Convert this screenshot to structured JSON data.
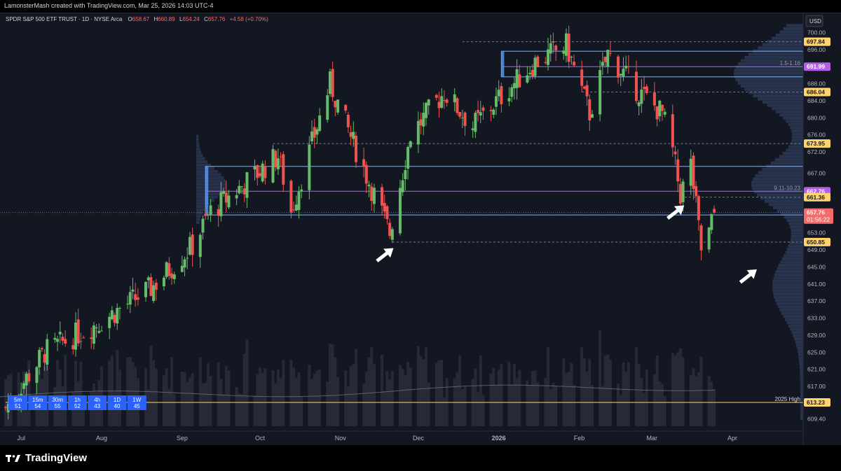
{
  "header": {
    "credit": "LamonsterMash created with TradingView.com, Mar 25, 2026 14:03 UTC-4"
  },
  "footer": {
    "brand": "TradingView"
  },
  "colors": {
    "background": "#131722",
    "up": "#66bb6a",
    "down": "#ef5350",
    "zone_border": "#5b9cf6",
    "zone_fill": "#1e3a8a",
    "vp_fill": "#3b4b73",
    "gold": "#ffd36e",
    "purple": "#b460e6",
    "red_badge": "#f46b6b",
    "axis_text": "#b2b5be"
  },
  "icons": [
    "arrow-icon",
    "tradingview-logo-icon"
  ],
  "chart_data": {
    "type": "candlestick",
    "legend": {
      "symbol": "SPDR S&P 500 ETF TRUST · 1D · NYSE Arca",
      "open_label": "O",
      "open": "658.67",
      "high_label": "H",
      "high": "660.89",
      "low_label": "L",
      "low": "654.24",
      "close_label": "C",
      "close": "657.76",
      "change": "+4.58 (+0.70%)"
    },
    "currency": "USD",
    "y_range": [
      606.5,
      704.5
    ],
    "y_ticks": [
      700.0,
      696.0,
      692.0,
      688.0,
      684.0,
      680.0,
      676.0,
      672.0,
      667.0,
      663.0,
      658.0,
      653.0,
      649.0,
      645.0,
      641.0,
      637.0,
      633.0,
      629.0,
      625.0,
      621.0,
      617.0,
      613.0,
      609.4
    ],
    "x_labels": [
      {
        "label": "Jul",
        "date": "2025-07-01"
      },
      {
        "label": "Aug",
        "date": "2025-08-01"
      },
      {
        "label": "Sep",
        "date": "2025-09-01"
      },
      {
        "label": "Oct",
        "date": "2025-10-01"
      },
      {
        "label": "Nov",
        "date": "2025-11-01"
      },
      {
        "label": "Dec",
        "date": "2025-12-01"
      },
      {
        "label": "2026",
        "date": "2026-01-01"
      },
      {
        "label": "Feb",
        "date": "2026-02-01"
      },
      {
        "label": "Mar",
        "date": "2026-03-01"
      },
      {
        "label": "Apr",
        "date": "2026-04-01"
      }
    ],
    "start_date": "2025-06-25",
    "end_date": "2026-03-25",
    "anchors": [
      {
        "date": "2025-06-25",
        "close": 612
      },
      {
        "date": "2025-07-10",
        "close": 625
      },
      {
        "date": "2025-07-31",
        "close": 632
      },
      {
        "date": "2025-08-20",
        "close": 640
      },
      {
        "date": "2025-09-05",
        "close": 650
      },
      {
        "date": "2025-09-12",
        "close": 658
      },
      {
        "date": "2025-09-22",
        "close": 663
      },
      {
        "date": "2025-10-08",
        "close": 671
      },
      {
        "date": "2025-10-13",
        "close": 658
      },
      {
        "date": "2025-10-28",
        "close": 688
      },
      {
        "date": "2025-11-06",
        "close": 674
      },
      {
        "date": "2025-11-20",
        "close": 653
      },
      {
        "date": "2025-11-28",
        "close": 676
      },
      {
        "date": "2025-12-11",
        "close": 686
      },
      {
        "date": "2025-12-22",
        "close": 678
      },
      {
        "date": "2026-01-05",
        "close": 687
      },
      {
        "date": "2026-01-15",
        "close": 693
      },
      {
        "date": "2026-01-27",
        "close": 697
      },
      {
        "date": "2026-02-05",
        "close": 681
      },
      {
        "date": "2026-02-12",
        "close": 695
      },
      {
        "date": "2026-02-24",
        "close": 686
      },
      {
        "date": "2026-03-05",
        "close": 681
      },
      {
        "date": "2026-03-09",
        "close": 672
      },
      {
        "date": "2026-03-12",
        "close": 662
      },
      {
        "date": "2026-03-16",
        "close": 669
      },
      {
        "date": "2026-03-20",
        "close": 649
      },
      {
        "date": "2026-03-23",
        "close": 653
      },
      {
        "date": "2026-03-25",
        "close": 657.76
      }
    ],
    "zones": [
      {
        "name": "upper-zone",
        "from": "2026-01-02",
        "to": "2026-04-30",
        "top": 695.6,
        "bottom": 689.6
      },
      {
        "name": "lower-zone",
        "from": "2025-09-10",
        "to": "2026-04-30",
        "top": 668.6,
        "bottom": 657.2
      }
    ],
    "levels": [
      {
        "value": 697.84,
        "label": "697.84",
        "style": "dashed",
        "badge": "gold",
        "from": "2025-12-18"
      },
      {
        "value": 691.99,
        "label": "691.99",
        "style": "solid-purple",
        "badge": "purple",
        "from": "2026-01-02",
        "annotation": "1.5-1.16"
      },
      {
        "value": 686.04,
        "label": "686.04",
        "style": "dashed",
        "badge": "gold",
        "from": "2026-02-02"
      },
      {
        "value": 673.95,
        "label": "673.95",
        "style": "dashed",
        "badge": "gold",
        "from": "2025-10-06"
      },
      {
        "value": 662.76,
        "label": "662.76",
        "style": "solid-purple",
        "badge": "purple",
        "from": "2025-09-10",
        "annotation": "9.11-10.23"
      },
      {
        "value": 661.36,
        "label": "661.36",
        "style": "dashed",
        "badge": "gold",
        "from": "2026-03-12"
      },
      {
        "value": 650.85,
        "label": "650.85",
        "style": "dashed",
        "badge": "gold",
        "from": "2025-11-21"
      },
      {
        "value": 613.23,
        "label": "613.23",
        "style": "solid-gold",
        "badge": "gold",
        "from": "2025-06-25",
        "annotation": "2025 High"
      }
    ],
    "last_price": {
      "value": 657.76,
      "label": "657.76",
      "countdown": "01:56:22"
    },
    "arrows": [
      {
        "name": "arrow-nov-low",
        "date": "2025-11-21",
        "price": 651
      },
      {
        "name": "arrow-mar-low",
        "date": "2026-03-13",
        "price": 661
      },
      {
        "name": "arrow-profile",
        "date": "2026-04-10",
        "price": 646
      }
    ],
    "timeframes": [
      {
        "tf": "5m",
        "value": "51"
      },
      {
        "tf": "15m",
        "value": "54"
      },
      {
        "tf": "30m",
        "value": "55"
      },
      {
        "tf": "1h",
        "value": "52"
      },
      {
        "tf": "4h",
        "value": "43"
      },
      {
        "tf": "1D",
        "value": "40"
      },
      {
        "tf": "1W",
        "value": "45"
      }
    ],
    "volume": {
      "visible": true,
      "moving_average": true
    },
    "volume_profile": {
      "visible": true,
      "side": "right"
    },
    "grid": false,
    "legend_position": "top-left"
  }
}
